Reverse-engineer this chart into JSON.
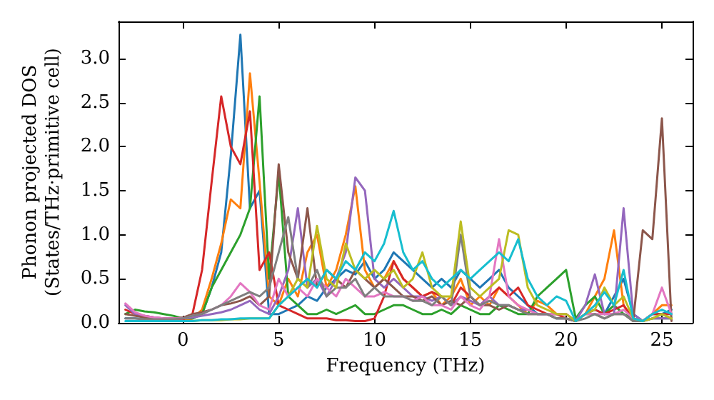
{
  "chart_data": {
    "type": "line",
    "xlabel": "Frequency (THz)",
    "ylabel": "Phonon projected DOS\n(States/THz·primitive cell)",
    "x": [
      -3,
      -2.5,
      -2,
      -1.5,
      -1,
      -0.5,
      0,
      0.5,
      1,
      1.5,
      2,
      2.5,
      3,
      3.5,
      4,
      4.5,
      5,
      5.5,
      6,
      6.5,
      7,
      7.5,
      8,
      8.5,
      9,
      9.5,
      10,
      10.5,
      11,
      11.5,
      12,
      12.5,
      13,
      13.5,
      14,
      14.5,
      15,
      15.5,
      16,
      16.5,
      17,
      17.5,
      18,
      18.5,
      19,
      19.5,
      20,
      20.5,
      21,
      21.5,
      22,
      22.5,
      23,
      23.5,
      24,
      24.5,
      25,
      25.5
    ],
    "series": [
      {
        "color": "#1f77b4",
        "values": [
          0.05,
          0.05,
          0.04,
          0.03,
          0.02,
          0.02,
          0.03,
          0.05,
          0.1,
          0.4,
          0.8,
          1.9,
          3.27,
          1.3,
          1.5,
          0.1,
          0.1,
          0.15,
          0.2,
          0.3,
          0.25,
          0.4,
          0.5,
          0.6,
          0.55,
          0.7,
          0.5,
          0.6,
          0.8,
          0.7,
          0.6,
          0.5,
          0.4,
          0.5,
          0.4,
          0.6,
          0.5,
          0.4,
          0.5,
          0.6,
          0.4,
          0.3,
          0.2,
          0.1,
          0.1,
          0.05,
          0.05,
          0.02,
          0.1,
          0.15,
          0.1,
          0.3,
          0.5,
          0.1,
          0.02,
          0.1,
          0.1,
          0.15
        ]
      },
      {
        "color": "#ff7f0e",
        "values": [
          null,
          null,
          null,
          null,
          null,
          null,
          0.02,
          0.05,
          0.15,
          0.5,
          0.9,
          1.4,
          1.3,
          2.83,
          1.6,
          0.3,
          0.2,
          0.5,
          0.3,
          0.8,
          1.0,
          0.4,
          0.6,
          1.0,
          1.55,
          0.6,
          0.4,
          0.5,
          0.7,
          0.5,
          0.4,
          0.3,
          0.35,
          0.2,
          0.3,
          0.5,
          0.2,
          0.3,
          0.2,
          0.4,
          0.3,
          0.2,
          0.1,
          0.25,
          0.2,
          0.1,
          0.1,
          0.02,
          0.1,
          0.3,
          0.5,
          1.05,
          0.2,
          0.02,
          0.02,
          0.1,
          0.2,
          0.2
        ]
      },
      {
        "color": "#2ca02c",
        "values": [
          0.1,
          0.15,
          0.13,
          0.12,
          0.1,
          0.08,
          0.05,
          0.05,
          0.1,
          0.4,
          0.6,
          0.8,
          1.0,
          1.3,
          2.57,
          0.5,
          1.7,
          0.3,
          0.2,
          0.1,
          0.1,
          0.15,
          0.1,
          0.15,
          0.2,
          0.1,
          0.1,
          0.15,
          0.2,
          0.2,
          0.15,
          0.1,
          0.1,
          0.15,
          0.1,
          0.2,
          0.15,
          0.1,
          0.1,
          0.2,
          0.15,
          0.1,
          0.1,
          0.3,
          0.4,
          0.5,
          0.6,
          0.05,
          0.2,
          0.3,
          0.1,
          0.2,
          0.1,
          0.05,
          0.02,
          0.05,
          0.05,
          0.05
        ]
      },
      {
        "color": "#d62728",
        "values": [
          0.15,
          0.1,
          0.08,
          0.06,
          0.05,
          0.04,
          0.04,
          0.1,
          0.6,
          1.6,
          2.57,
          2.0,
          1.8,
          2.4,
          0.6,
          0.8,
          0.2,
          0.15,
          0.1,
          0.05,
          0.05,
          0.05,
          0.03,
          0.03,
          0.02,
          0.02,
          0.05,
          0.3,
          0.7,
          0.5,
          0.4,
          0.3,
          0.35,
          0.3,
          0.2,
          0.4,
          0.3,
          0.2,
          0.3,
          0.4,
          0.3,
          0.4,
          0.2,
          0.15,
          0.1,
          0.1,
          0.05,
          0.02,
          0.1,
          0.15,
          0.1,
          0.15,
          0.2,
          0.05,
          0.02,
          0.1,
          0.1,
          0.1
        ]
      },
      {
        "color": "#9467bd",
        "values": [
          0.2,
          0.1,
          0.08,
          0.06,
          0.05,
          0.05,
          0.05,
          0.06,
          0.08,
          0.1,
          0.12,
          0.15,
          0.2,
          0.25,
          0.15,
          0.1,
          0.3,
          0.6,
          1.3,
          0.4,
          0.5,
          0.3,
          0.5,
          0.8,
          1.65,
          1.5,
          0.5,
          0.4,
          0.5,
          0.4,
          0.3,
          0.3,
          0.25,
          0.3,
          0.2,
          0.3,
          0.25,
          0.2,
          0.3,
          0.2,
          0.2,
          0.15,
          0.15,
          0.1,
          0.1,
          0.1,
          0.1,
          0.02,
          0.2,
          0.55,
          0.1,
          0.1,
          1.3,
          0.1,
          0.02,
          0.05,
          0.05,
          0.05
        ]
      },
      {
        "color": "#8c564b",
        "values": [
          0.1,
          0.08,
          0.06,
          0.05,
          0.05,
          0.05,
          0.06,
          0.1,
          0.12,
          0.15,
          0.2,
          0.22,
          0.25,
          0.3,
          0.2,
          0.3,
          1.8,
          0.8,
          0.5,
          1.3,
          0.4,
          0.6,
          0.5,
          0.4,
          0.6,
          0.5,
          0.4,
          0.5,
          0.4,
          0.3,
          0.3,
          0.25,
          0.3,
          0.2,
          0.25,
          0.2,
          0.3,
          0.2,
          0.2,
          0.15,
          0.2,
          0.15,
          0.1,
          0.1,
          0.1,
          0.05,
          0.05,
          0.02,
          0.1,
          0.1,
          0.05,
          0.1,
          0.1,
          0.02,
          1.05,
          0.95,
          2.32,
          0.02
        ]
      },
      {
        "color": "#e377c2",
        "values": [
          0.22,
          0.12,
          0.08,
          0.06,
          0.05,
          0.05,
          0.05,
          0.08,
          0.1,
          0.15,
          0.2,
          0.3,
          0.45,
          0.35,
          0.2,
          0.15,
          0.5,
          0.3,
          0.4,
          0.3,
          0.5,
          0.4,
          0.3,
          0.5,
          0.4,
          0.3,
          0.3,
          0.35,
          0.3,
          0.3,
          0.25,
          0.3,
          0.2,
          0.2,
          0.15,
          0.3,
          0.2,
          0.15,
          0.3,
          0.95,
          0.3,
          0.2,
          0.15,
          0.1,
          0.1,
          0.1,
          0.1,
          0.02,
          0.1,
          0.1,
          0.1,
          0.1,
          0.15,
          0.05,
          0.02,
          0.1,
          0.4,
          0.1
        ]
      },
      {
        "color": "#7f7f7f",
        "values": [
          0.05,
          0.05,
          0.04,
          0.04,
          0.04,
          0.04,
          0.05,
          0.08,
          0.1,
          0.15,
          0.2,
          0.25,
          0.3,
          0.35,
          0.3,
          0.4,
          0.8,
          1.2,
          0.5,
          0.4,
          0.6,
          0.3,
          0.4,
          0.4,
          0.5,
          0.3,
          0.4,
          0.3,
          0.3,
          0.3,
          0.25,
          0.25,
          0.2,
          0.3,
          0.2,
          1.0,
          0.3,
          0.2,
          0.25,
          0.2,
          0.2,
          0.15,
          0.1,
          0.1,
          0.1,
          0.05,
          0.05,
          0.02,
          0.05,
          0.1,
          0.05,
          0.1,
          0.1,
          0.02,
          0.02,
          0.05,
          0.1,
          0.05
        ]
      },
      {
        "color": "#bcbd22",
        "values": [
          null,
          null,
          null,
          null,
          null,
          0.02,
          0.02,
          0.02,
          0.03,
          0.03,
          0.03,
          0.04,
          0.04,
          0.05,
          0.05,
          0.05,
          0.2,
          0.3,
          0.5,
          0.4,
          1.1,
          0.5,
          0.4,
          0.9,
          0.6,
          0.5,
          0.6,
          0.5,
          0.6,
          0.4,
          0.5,
          0.8,
          0.4,
          0.3,
          0.3,
          1.15,
          0.4,
          0.3,
          0.4,
          0.5,
          1.05,
          1.0,
          0.4,
          0.2,
          0.15,
          0.1,
          0.1,
          0.02,
          0.1,
          0.15,
          0.4,
          0.2,
          0.3,
          0.05,
          0.02,
          0.05,
          0.1,
          0.05
        ]
      },
      {
        "color": "#17becf",
        "values": [
          0.02,
          0.02,
          0.02,
          0.02,
          0.02,
          0.02,
          0.02,
          0.02,
          0.03,
          0.03,
          0.04,
          0.04,
          0.05,
          0.05,
          0.05,
          0.05,
          0.2,
          0.3,
          0.4,
          0.5,
          0.4,
          0.6,
          0.5,
          0.7,
          0.6,
          0.8,
          0.7,
          0.9,
          1.27,
          0.8,
          0.6,
          0.7,
          0.5,
          0.4,
          0.5,
          0.6,
          0.5,
          0.6,
          0.7,
          0.8,
          0.7,
          0.95,
          0.5,
          0.3,
          0.2,
          0.3,
          0.25,
          0.02,
          0.1,
          0.2,
          0.35,
          0.2,
          0.6,
          0.05,
          0.02,
          0.1,
          0.15,
          0.1
        ]
      }
    ],
    "xlim": [
      -3.36,
      26.6
    ],
    "xticks": [
      0,
      5,
      10,
      15,
      20,
      25
    ],
    "ylim": [
      0,
      3.42
    ],
    "yticks": [
      {
        "value": 0,
        "label": "0.0"
      },
      {
        "value": 0.5,
        "label": "0.5"
      },
      {
        "value": 1,
        "label": "1.0"
      },
      {
        "value": 1.5,
        "label": "1.5"
      },
      {
        "value": 2,
        "label": "2.0"
      },
      {
        "value": 2.5,
        "label": "2.5"
      },
      {
        "value": 3,
        "label": "3.0"
      }
    ],
    "grid": false
  }
}
